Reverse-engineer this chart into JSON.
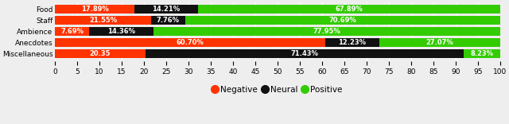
{
  "categories": [
    "Miscellaneous",
    "Anecdotes",
    "Ambience",
    "Staff",
    "Food"
  ],
  "negative": [
    20.35,
    60.7,
    7.69,
    21.55,
    17.89
  ],
  "neutral": [
    71.43,
    12.23,
    14.36,
    7.76,
    14.21
  ],
  "positive": [
    8.23,
    27.07,
    77.95,
    70.69,
    67.89
  ],
  "neg_labels": [
    "20.35",
    "60.70%",
    "7.69%",
    "21.55%",
    "17.89%"
  ],
  "neu_labels": [
    "71.43%",
    "12.23%",
    "14.36%",
    "7.76%",
    "14.21%"
  ],
  "pos_labels": [
    "8.23%",
    "27.07%",
    "77.95%",
    "70.69%",
    "67.89%"
  ],
  "negative_color": "#ff3300",
  "neutral_color": "#111111",
  "positive_color": "#33cc00",
  "background_color": "#eeeeee",
  "text_color": "#ffffff",
  "label_fontsize": 6.0,
  "tick_fontsize": 6.5,
  "legend_fontsize": 7.5,
  "bar_height": 0.78,
  "xlim": [
    0,
    100
  ],
  "xticks": [
    0,
    5,
    10,
    15,
    20,
    25,
    30,
    35,
    40,
    45,
    50,
    55,
    60,
    65,
    70,
    75,
    80,
    85,
    90,
    95,
    100
  ]
}
